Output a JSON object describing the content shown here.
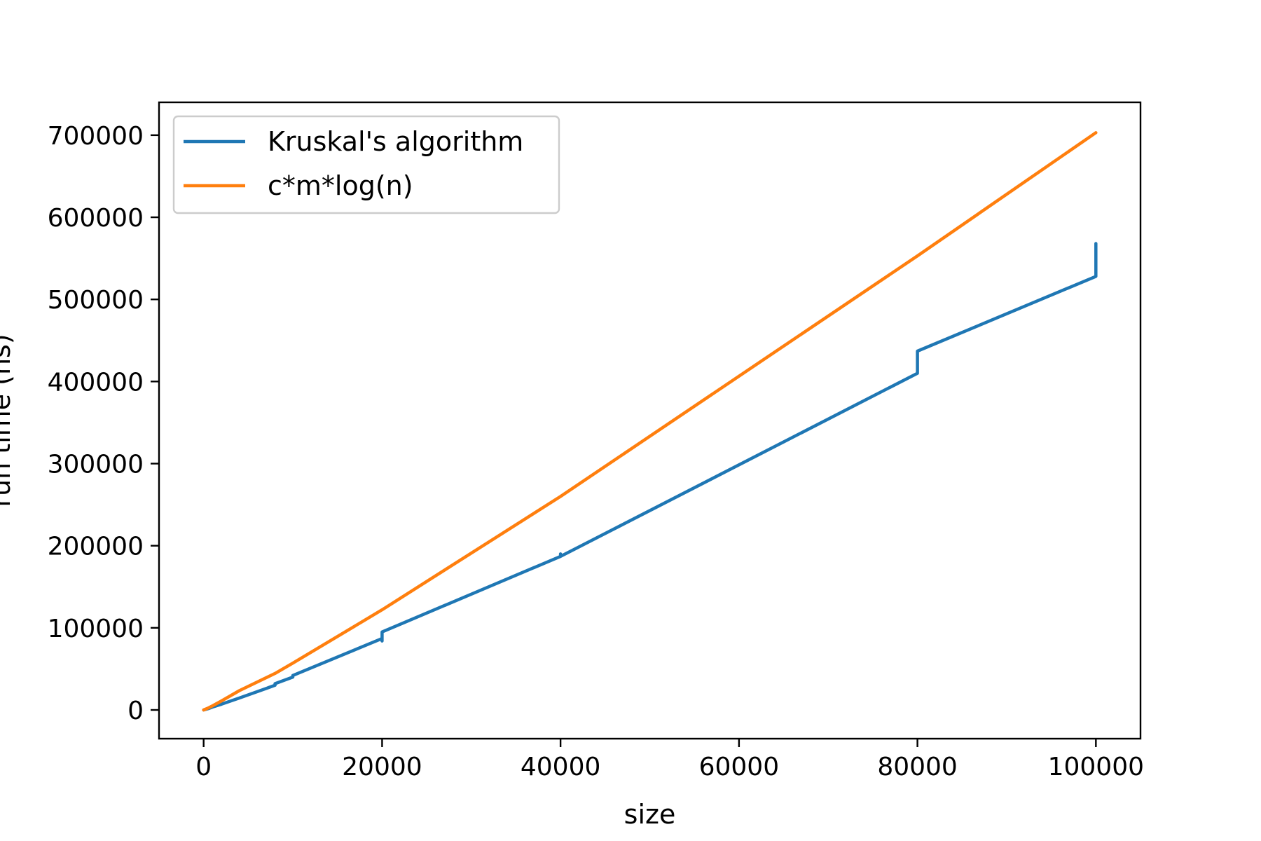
{
  "chart_data": {
    "type": "line",
    "title": "",
    "xlabel": "size",
    "ylabel": "run time (ns)",
    "xlim": [
      -5000,
      105000
    ],
    "ylim": [
      -35000,
      740000
    ],
    "x_ticks": [
      0,
      20000,
      40000,
      60000,
      80000,
      100000
    ],
    "y_ticks": [
      0,
      100000,
      200000,
      300000,
      400000,
      500000,
      600000,
      700000
    ],
    "grid": false,
    "legend_position": "upper-left",
    "series": [
      {
        "name": "Kruskal's algorithm",
        "color": "#1f77b4",
        "x": [
          0,
          500,
          1000,
          2000,
          4000,
          8000,
          8000,
          10000,
          10000,
          20000,
          20000,
          20000,
          20000,
          40000,
          40000,
          40000,
          80000,
          80000,
          80000,
          100000,
          100000,
          100000
        ],
        "y": [
          0,
          1500,
          3500,
          7000,
          14500,
          30000,
          32000,
          40000,
          42000,
          87000,
          84000,
          90000,
          95000,
          187000,
          190000,
          187000,
          410000,
          436000,
          437000,
          528000,
          568000,
          540000
        ]
      },
      {
        "name": "c*m*log(n)",
        "color": "#ff7f0e",
        "x": [
          0,
          500,
          1000,
          2000,
          4000,
          8000,
          10000,
          20000,
          40000,
          80000,
          100000
        ],
        "y": [
          0,
          2300,
          5000,
          11000,
          23500,
          44500,
          57000,
          122000,
          260000,
          553000,
          703000
        ]
      }
    ]
  }
}
